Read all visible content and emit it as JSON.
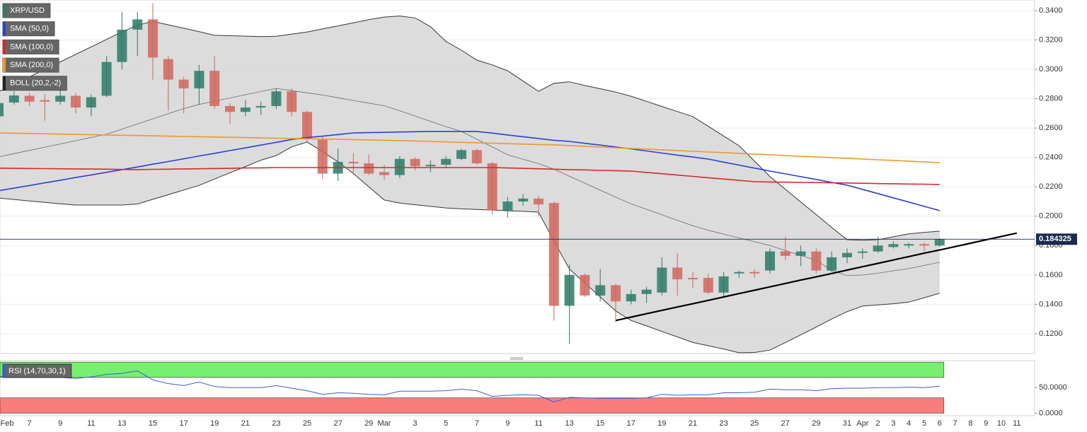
{
  "chart_data": [
    {
      "type": "candlestick",
      "categories": [
        "Feb",
        null,
        "7",
        null,
        "9",
        null,
        "11",
        null,
        "13",
        null,
        "15",
        null,
        "17",
        null,
        "19",
        null,
        "21",
        null,
        "23",
        null,
        "25",
        null,
        "27",
        null,
        "29",
        "Mar",
        null,
        "3",
        null,
        "5",
        null,
        "7",
        null,
        "9",
        null,
        "11",
        null,
        "13",
        null,
        "15",
        null,
        "17",
        null,
        "19",
        null,
        "21",
        null,
        "23",
        null,
        "25",
        null,
        "27",
        null,
        "29",
        null,
        "31",
        "Apr",
        "2",
        "3",
        "4",
        "5",
        "6",
        "7",
        "8",
        "9",
        "10",
        "11"
      ],
      "series": [
        {
          "name": "XRP/USD",
          "type": "candlestick",
          "up_color": "#2d7a67",
          "down_color": "#d0665d",
          "open": [
            0.268,
            0.2774,
            0.282,
            0.279,
            0.278,
            0.282,
            0.274,
            0.282,
            0.305,
            0.327,
            0.334,
            0.307,
            0.293,
            0.287,
            0.299,
            0.275,
            0.271,
            0.274,
            0.275,
            0.285,
            0.271,
            0.252,
            0.229,
            0.237,
            0.236,
            0.23,
            0.228,
            0.239,
            0.234,
            0.235,
            0.239,
            0.245,
            0.236,
            0.204,
            0.21,
            0.212,
            0.209,
            0.139,
            0.16,
            0.146,
            0.153,
            0.142,
            0.147,
            0.148,
            0.165,
            0.158,
            0.158,
            0.148,
            0.161,
            0.162,
            0.163,
            0.176,
            0.173,
            0.176,
            0.163,
            0.172,
            0.175,
            0.176,
            0.179,
            0.18,
            0.181,
            0.18,
            null,
            null,
            null,
            null,
            null
          ],
          "high": [
            0.28,
            0.285,
            0.284,
            0.283,
            0.29,
            0.284,
            0.283,
            0.309,
            0.339,
            0.339,
            0.345,
            0.309,
            0.295,
            0.303,
            0.309,
            0.277,
            0.279,
            0.278,
            0.287,
            0.287,
            0.272,
            0.254,
            0.246,
            0.243,
            0.242,
            0.235,
            0.241,
            0.24,
            0.238,
            0.241,
            0.246,
            0.246,
            0.237,
            0.213,
            0.215,
            0.214,
            0.21,
            0.167,
            0.161,
            0.164,
            0.154,
            0.15,
            0.152,
            0.172,
            0.175,
            0.162,
            0.161,
            0.162,
            0.163,
            0.164,
            0.178,
            0.186,
            0.18,
            0.178,
            0.176,
            0.178,
            0.178,
            0.186,
            0.183,
            0.182,
            0.182,
            0.185,
            null,
            null,
            null,
            null,
            null
          ],
          "low": [
            0.266,
            0.276,
            0.275,
            0.265,
            0.276,
            0.27,
            0.268,
            0.281,
            0.3,
            0.309,
            0.293,
            0.272,
            0.27,
            0.276,
            0.273,
            0.263,
            0.268,
            0.269,
            0.273,
            0.268,
            0.25,
            0.225,
            0.224,
            0.228,
            0.228,
            0.225,
            0.226,
            0.231,
            0.23,
            0.233,
            0.238,
            0.235,
            0.201,
            0.199,
            0.207,
            0.2,
            0.129,
            0.113,
            0.145,
            0.142,
            0.128,
            0.14,
            0.141,
            0.146,
            0.146,
            0.151,
            0.147,
            0.145,
            0.158,
            0.158,
            0.161,
            0.17,
            0.166,
            0.161,
            0.162,
            0.168,
            0.171,
            0.175,
            0.178,
            0.178,
            0.176,
            0.179,
            null,
            null,
            null,
            null,
            null
          ],
          "close": [
            0.277,
            0.2822,
            0.278,
            0.278,
            0.282,
            0.274,
            0.281,
            0.305,
            0.327,
            0.334,
            0.308,
            0.293,
            0.287,
            0.299,
            0.275,
            0.271,
            0.274,
            0.275,
            0.285,
            0.271,
            0.253,
            0.229,
            0.237,
            0.236,
            0.229,
            0.228,
            0.239,
            0.234,
            0.235,
            0.239,
            0.245,
            0.236,
            0.204,
            0.21,
            0.212,
            0.208,
            0.139,
            0.16,
            0.146,
            0.153,
            0.142,
            0.147,
            0.15,
            0.165,
            0.157,
            0.157,
            0.148,
            0.159,
            0.162,
            0.161,
            0.176,
            0.173,
            0.176,
            0.163,
            0.172,
            0.175,
            0.176,
            0.18,
            0.181,
            0.181,
            0.18,
            0.184325,
            null,
            null,
            null,
            null,
            null
          ]
        },
        {
          "name": "SMA (50,0)",
          "type": "line",
          "color": "#2b3fd8",
          "values": [
            0.2173,
            0.2191,
            0.2209,
            0.2227,
            0.2245,
            0.2263,
            0.2281,
            0.2299,
            0.2317,
            0.2335,
            0.2354,
            0.2372,
            0.2391,
            0.241,
            0.2428,
            0.2447,
            0.2465,
            0.2484,
            0.2503,
            0.2522,
            0.2535,
            0.2545,
            0.2556,
            0.2567,
            0.2569,
            0.2571,
            0.2573,
            0.2575,
            0.2577,
            0.2577,
            0.2577,
            0.2577,
            0.2566,
            0.2553,
            0.2541,
            0.2529,
            0.2517,
            0.2509,
            0.2496,
            0.2484,
            0.2471,
            0.2458,
            0.2444,
            0.243,
            0.2416,
            0.2403,
            0.2389,
            0.2368,
            0.2348,
            0.2327,
            0.2307,
            0.2288,
            0.2269,
            0.225,
            0.223,
            0.2211,
            0.2183,
            0.2154,
            0.2125,
            0.2096,
            0.2067,
            0.2038,
            null,
            null,
            null,
            null,
            null
          ]
        },
        {
          "name": "SMA (100,0)",
          "type": "line",
          "color": "#d42a2a",
          "values": [
            0.2327,
            0.2326,
            0.2325,
            0.2324,
            0.2323,
            0.2322,
            0.2321,
            0.232,
            0.2318,
            0.2317,
            0.2319,
            0.232,
            0.2322,
            0.2323,
            0.2325,
            0.2326,
            0.2328,
            0.2329,
            0.2331,
            0.2331,
            0.2331,
            0.2331,
            0.2331,
            0.2331,
            0.2331,
            0.2331,
            0.2331,
            0.2331,
            0.2331,
            0.2331,
            0.2331,
            0.2331,
            0.2331,
            0.2328,
            0.2326,
            0.2323,
            0.232,
            0.2317,
            0.2315,
            0.2312,
            0.231,
            0.2307,
            0.2298,
            0.2289,
            0.228,
            0.2271,
            0.2262,
            0.2253,
            0.2244,
            0.2235,
            0.2233,
            0.2232,
            0.223,
            0.2229,
            0.2227,
            0.2226,
            0.2224,
            0.2222,
            0.2221,
            0.2219,
            0.2218,
            0.2216,
            null,
            null,
            null,
            null,
            null
          ]
        },
        {
          "name": "SMA (200,0)",
          "type": "line",
          "color": "#f0962a",
          "values": [
            0.2567,
            0.2565,
            0.2563,
            0.2561,
            0.2559,
            0.2557,
            0.2555,
            0.2553,
            0.2551,
            0.2549,
            0.2547,
            0.2545,
            0.2543,
            0.2541,
            0.2539,
            0.2537,
            0.2535,
            0.2533,
            0.2531,
            0.2529,
            0.2527,
            0.2525,
            0.2523,
            0.2521,
            0.2519,
            0.2517,
            0.2515,
            0.2512,
            0.2509,
            0.2506,
            0.2503,
            0.25,
            0.2497,
            0.2494,
            0.2491,
            0.2488,
            0.2486,
            0.2481,
            0.2476,
            0.2471,
            0.2466,
            0.2461,
            0.2457,
            0.2452,
            0.2447,
            0.2442,
            0.2437,
            0.2433,
            0.2428,
            0.2423,
            0.2418,
            0.2413,
            0.2408,
            0.2404,
            0.2399,
            0.2394,
            0.2389,
            0.2384,
            0.238,
            0.2375,
            0.237,
            0.2365,
            null,
            null,
            null,
            null,
            null
          ]
        },
        {
          "name": "BOLL (20,2,-2)",
          "type": "band",
          "color": "#222222",
          "fill": "#d6d6d6",
          "upper": [
            0.2847,
            0.2898,
            0.2949,
            0.3,
            0.3051,
            0.3102,
            0.3153,
            0.3204,
            0.3255,
            0.33,
            0.3326,
            0.3303,
            0.328,
            0.3257,
            0.3232,
            0.3229,
            0.3226,
            0.3223,
            0.3225,
            0.324,
            0.3254,
            0.3275,
            0.3296,
            0.3317,
            0.3338,
            0.3356,
            0.3363,
            0.335,
            0.329,
            0.319,
            0.313,
            0.3063,
            0.303,
            0.299,
            0.292,
            0.285,
            0.2905,
            0.2915,
            0.289,
            0.2868,
            0.2845,
            0.2817,
            0.2782,
            0.2747,
            0.2713,
            0.2678,
            0.2612,
            0.2546,
            0.248,
            0.2375,
            0.227,
            0.2183,
            0.2096,
            0.2011,
            0.1924,
            0.184,
            0.1836,
            0.184,
            0.186,
            0.188,
            0.189,
            0.1898,
            null,
            null,
            null,
            null,
            null
          ],
          "middle": [
            0.2404,
            0.2426,
            0.2448,
            0.247,
            0.2492,
            0.2514,
            0.2536,
            0.2558,
            0.2593,
            0.2628,
            0.2663,
            0.2698,
            0.2733,
            0.2761,
            0.2783,
            0.2805,
            0.2827,
            0.2849,
            0.287,
            0.2855,
            0.284,
            0.2825,
            0.2806,
            0.2788,
            0.277,
            0.2752,
            0.2718,
            0.2682,
            0.2646,
            0.261,
            0.2577,
            0.2524,
            0.2471,
            0.2418,
            0.2388,
            0.2358,
            0.232,
            0.2272,
            0.2225,
            0.2177,
            0.213,
            0.2084,
            0.2047,
            0.201,
            0.1972,
            0.1935,
            0.1904,
            0.1878,
            0.1852,
            0.1826,
            0.18,
            0.1766,
            0.1732,
            0.17,
            0.163,
            0.1595,
            0.16,
            0.1612,
            0.1628,
            0.1643,
            0.1665,
            0.1686,
            null,
            null,
            null,
            null,
            null
          ],
          "lower": [
            0.2124,
            0.2114,
            0.2104,
            0.2094,
            0.2084,
            0.2076,
            0.2076,
            0.2076,
            0.2076,
            0.2083,
            0.2115,
            0.2146,
            0.2178,
            0.221,
            0.2253,
            0.2296,
            0.2338,
            0.2381,
            0.2413,
            0.2472,
            0.2505,
            0.244,
            0.237,
            0.229,
            0.22,
            0.211,
            0.209,
            0.2078,
            0.2067,
            0.2056,
            0.205,
            0.2046,
            0.2042,
            0.2037,
            0.2033,
            0.2028,
            0.183,
            0.164,
            0.1545,
            0.145,
            0.1355,
            0.129,
            0.1253,
            0.1215,
            0.1178,
            0.114,
            0.1118,
            0.1096,
            0.107,
            0.1072,
            0.1088,
            0.114,
            0.1192,
            0.1245,
            0.13,
            0.135,
            0.1388,
            0.1396,
            0.1404,
            0.1415,
            0.1445,
            0.1475,
            null,
            null,
            null,
            null,
            null
          ]
        }
      ],
      "trendline": {
        "color": "#000000",
        "values": [
          null,
          null,
          null,
          null,
          null,
          null,
          null,
          null,
          null,
          null,
          null,
          null,
          null,
          null,
          null,
          null,
          null,
          null,
          null,
          null,
          null,
          null,
          null,
          null,
          null,
          null,
          null,
          null,
          null,
          null,
          null,
          null,
          null,
          null,
          null,
          null,
          null,
          null,
          null,
          null,
          0.129,
          0.1313,
          0.1336,
          0.1359,
          0.1382,
          0.1404,
          0.1427,
          0.145,
          0.1473,
          0.1496,
          0.1519,
          0.1542,
          0.1565,
          0.1587,
          0.161,
          0.1633,
          0.1656,
          0.1679,
          0.1702,
          0.1725,
          0.1748,
          0.177,
          0.1793,
          0.1816,
          0.1839,
          0.1862,
          0.1885
        ]
      },
      "last_price": 0.184325,
      "last_price_color": "#1b2a4e",
      "ylim": [
        0.1065,
        0.3472
      ],
      "yticks": [
        {
          "value": 0.12,
          "label": "0.1200"
        },
        {
          "value": 0.14,
          "label": "0.1400"
        },
        {
          "value": 0.16,
          "label": "0.1600"
        },
        {
          "value": 0.18,
          "label": "0.1800"
        },
        {
          "value": 0.2,
          "label": "0.2000"
        },
        {
          "value": 0.22,
          "label": "0.2200"
        },
        {
          "value": 0.24,
          "label": "0.2400"
        },
        {
          "value": 0.26,
          "label": "0.2600"
        },
        {
          "value": 0.28,
          "label": "0.2800"
        },
        {
          "value": 0.3,
          "label": "0.3000"
        },
        {
          "value": 0.32,
          "label": "0.3200"
        },
        {
          "value": 0.34,
          "label": "0.3400"
        }
      ],
      "grid": true
    },
    {
      "type": "line",
      "title": "RSI (14,70,30,1)",
      "color": "#3a5bd9",
      "values": [
        72,
        73,
        74,
        72,
        70,
        68,
        71,
        76,
        78,
        83,
        65,
        58,
        54,
        61,
        52,
        50,
        50,
        50,
        54,
        49,
        44,
        37,
        40,
        39,
        37,
        36,
        43,
        43,
        43,
        44,
        47,
        44,
        33,
        35,
        36,
        35,
        22,
        31,
        30,
        29,
        29,
        29,
        30,
        37,
        35,
        36,
        36,
        40,
        40,
        41,
        47,
        46,
        46,
        44,
        48,
        49,
        49,
        50,
        50,
        51,
        50,
        53,
        null,
        null,
        null,
        null,
        null
      ],
      "zones": [
        {
          "from": 70,
          "to": 100,
          "color": "#77f06f"
        },
        {
          "from": 0,
          "to": 30,
          "color": "#f97d7d"
        }
      ],
      "ylim": [
        -5,
        103
      ],
      "yticks": [
        {
          "value": 0,
          "label": "0.0000"
        },
        {
          "value": 50,
          "label": "50.0000"
        }
      ]
    }
  ]
}
